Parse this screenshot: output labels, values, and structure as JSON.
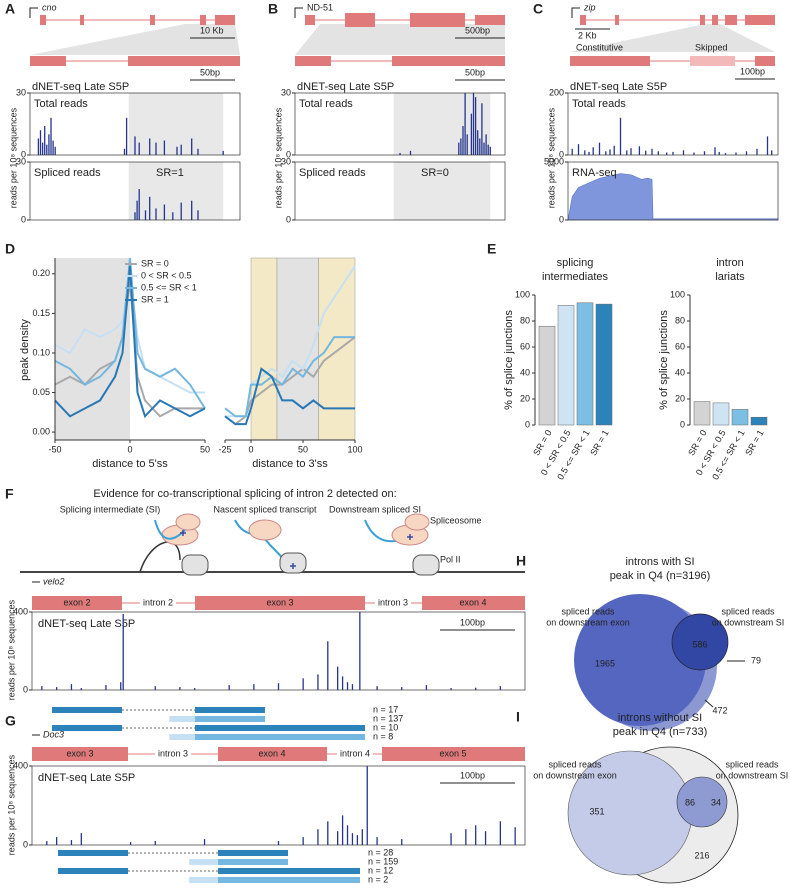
{
  "panels": {
    "A": {
      "label": "A",
      "gene": "cno",
      "scale_gene": "10 Kb",
      "scale_zoom": "50bp",
      "track_title": "dNET-seq Late S5P",
      "y_axis_label": "reads per 10⁸ sequences",
      "tracks": [
        {
          "name": "Total reads",
          "ylim": [
            0,
            30
          ],
          "yticks": [
            0,
            30
          ],
          "x": [
            4,
            5,
            6,
            7,
            8,
            9,
            10,
            11,
            12,
            45,
            46,
            50,
            52,
            57,
            60,
            64,
            70,
            72,
            77,
            80,
            92
          ],
          "values": [
            8,
            12,
            6,
            14,
            5,
            10,
            18,
            7,
            4,
            3,
            18,
            9,
            6,
            8,
            6,
            7,
            4,
            5,
            8,
            3,
            2
          ]
        },
        {
          "name": "Spliced reads",
          "annotation": "SR=1",
          "ylim": [
            0,
            30
          ],
          "yticks": [
            0,
            30
          ],
          "x": [
            50,
            51,
            52,
            55,
            57,
            60,
            64,
            68,
            72,
            77,
            80
          ],
          "values": [
            4,
            10,
            16,
            5,
            12,
            6,
            8,
            4,
            9,
            10,
            5
          ]
        }
      ]
    },
    "B": {
      "label": "B",
      "gene": "ND-51",
      "scale_gene": "500bp",
      "scale_zoom": "50bp",
      "track_title": "dNET-seq Late S5P",
      "y_axis_label": "reads per 10⁸ sequences",
      "tracks": [
        {
          "name": "Total reads",
          "ylim": [
            0,
            30
          ],
          "yticks": [
            0,
            30
          ],
          "x": [
            50,
            55,
            78,
            79,
            80,
            81,
            82,
            84,
            85,
            86,
            87,
            88,
            89,
            90,
            91,
            92,
            93
          ],
          "values": [
            1,
            2,
            6,
            8,
            14,
            30,
            10,
            20,
            30,
            28,
            12,
            8,
            25,
            6,
            10,
            5,
            4
          ]
        },
        {
          "name": "Spliced reads",
          "annotation": "SR=0",
          "ylim": [
            0,
            30
          ],
          "yticks": [
            0,
            30
          ],
          "x": [],
          "values": []
        }
      ]
    },
    "C": {
      "label": "C",
      "gene": "zip",
      "scale_gene": "2 Kb",
      "exon_labels": [
        "Constitutive",
        "Skipped"
      ],
      "scale_zoom": "100bp",
      "track_title": "dNET-seq Late S5P",
      "y_axis_label": "reads per 10⁸ sequences",
      "tracks": [
        {
          "name": "Total reads",
          "ylim": [
            0,
            200
          ],
          "yticks": [
            0,
            200
          ],
          "x": [
            2,
            5,
            8,
            10,
            12,
            15,
            18,
            20,
            22,
            25,
            28,
            30,
            34,
            37,
            40,
            43,
            47,
            50,
            55,
            60,
            65,
            70,
            72,
            75,
            80,
            85,
            90,
            95,
            97
          ],
          "values": [
            20,
            35,
            15,
            10,
            25,
            40,
            12,
            18,
            30,
            120,
            15,
            22,
            28,
            14,
            20,
            12,
            8,
            10,
            15,
            8,
            12,
            25,
            10,
            6,
            8,
            12,
            20,
            60,
            15
          ]
        },
        {
          "name": "RNA-seq",
          "type": "area",
          "ylim": [
            0,
            5000
          ],
          "yticks": [
            0,
            5000
          ],
          "x": [
            0,
            2,
            5,
            10,
            15,
            20,
            25,
            30,
            35,
            38,
            40,
            40.5,
            60,
            80,
            100
          ],
          "values": [
            0,
            2000,
            2800,
            3200,
            3600,
            3800,
            4000,
            3900,
            3500,
            3600,
            3500,
            100,
            100,
            100,
            100
          ]
        }
      ]
    },
    "D": {
      "label": "D",
      "y_label": "peak density",
      "ylim": [
        -0.01,
        0.22
      ],
      "yticks": [
        {
          "value": 0,
          "label": "0.00"
        },
        {
          "value": 0.05,
          "label": "0.05"
        },
        {
          "value": 0.1,
          "label": "0.10"
        },
        {
          "value": 0.15,
          "label": "0.15"
        },
        {
          "value": 0.2,
          "label": "0.20"
        }
      ],
      "series": [
        {
          "name": "SR = 0",
          "color": "#a9a9a9"
        },
        {
          "name": "0 < SR < 0.5",
          "color": "#c6e0f3"
        },
        {
          "name": "0.5 <= SR < 1",
          "color": "#74b7e0"
        },
        {
          "name": "SR = 1",
          "color": "#2878b5"
        }
      ],
      "subplots": [
        {
          "x_label": "distance to 5'ss",
          "xlim": [
            -50,
            50
          ],
          "xticks": [
            -50,
            0,
            50
          ],
          "x": [
            -50,
            -40,
            -30,
            -20,
            -10,
            -5,
            0,
            5,
            10,
            20,
            30,
            40,
            50
          ],
          "values": [
            [
              0.06,
              0.07,
              0.06,
              0.08,
              0.09,
              0.12,
              0.19,
              0.07,
              0.04,
              0.02,
              0.03,
              0.03,
              0.03
            ],
            [
              0.11,
              0.1,
              0.13,
              0.12,
              0.13,
              0.14,
              0.2,
              0.12,
              0.08,
              0.07,
              0.06,
              0.05,
              0.05
            ],
            [
              0.09,
              0.08,
              0.06,
              0.07,
              0.09,
              0.12,
              0.22,
              0.1,
              0.08,
              0.07,
              0.08,
              0.06,
              0.03
            ],
            [
              0.04,
              0.02,
              0.03,
              0.04,
              0.07,
              0.1,
              0.21,
              0.05,
              0.02,
              0.04,
              0.03,
              0.02,
              0.03
            ]
          ]
        },
        {
          "x_label": "distance to 3'ss",
          "xlim": [
            -25,
            100
          ],
          "xticks": [
            -25,
            0,
            50,
            100
          ],
          "x": [
            -25,
            -15,
            -5,
            0,
            10,
            20,
            30,
            40,
            50,
            60,
            70,
            80,
            90,
            100
          ],
          "values": [
            [
              0.02,
              0.01,
              0.02,
              0.04,
              0.05,
              0.06,
              0.06,
              0.07,
              0.08,
              0.07,
              0.09,
              0.1,
              0.11,
              0.12
            ],
            [
              0.02,
              0.02,
              0.02,
              0.06,
              0.07,
              0.08,
              0.07,
              0.09,
              0.08,
              0.11,
              0.15,
              0.17,
              0.19,
              0.21
            ],
            [
              0.03,
              0.02,
              0.02,
              0.06,
              0.06,
              0.07,
              0.06,
              0.08,
              0.07,
              0.09,
              0.1,
              0.12,
              0.12,
              0.12
            ],
            [
              0.02,
              0.01,
              0.01,
              0.03,
              0.08,
              0.07,
              0.04,
              0.04,
              0.03,
              0.04,
              0.03,
              0.03,
              0.03,
              0.03
            ]
          ]
        }
      ]
    },
    "E": {
      "label": "E",
      "y_label": "% of splice junctions",
      "ylim": [
        0,
        100
      ],
      "yticks": [
        0,
        20,
        40,
        60,
        80,
        100
      ],
      "categories": [
        "SR = 0",
        "0 < SR < 0.5",
        "0.5 <= SR < 1",
        "SR = 1"
      ],
      "colors": [
        "#d3d3d3",
        "#cfe4f3",
        "#7cbfe3",
        "#2b83ba"
      ],
      "charts": [
        {
          "title": [
            "splicing",
            "intermediates"
          ],
          "values": [
            76,
            92,
            94,
            93
          ]
        },
        {
          "title": [
            "intron",
            "lariats"
          ],
          "values": [
            18,
            17,
            12,
            6
          ]
        }
      ]
    },
    "F": {
      "label": "F",
      "title": "Evidence for co-transcriptional splicing of intron 2 detected on:",
      "cartoon_labels": [
        "Splicing intermediate (SI)",
        "Nascent spliced transcript",
        "Downstream spliced SI"
      ],
      "spliceosome": "Spliceosome",
      "pol": "Pol II",
      "gene": "velo2",
      "features": [
        "exon 2",
        "intron 2",
        "exon 3",
        "intron 3",
        "exon 4"
      ],
      "track_title": "dNET-seq Late S5P",
      "scale": "100bp",
      "y_axis_label": "reads per 10⁸ sequences",
      "track": {
        "ylim": [
          0,
          400
        ],
        "yticks": [
          0,
          400
        ],
        "x": [
          2,
          5,
          8,
          10,
          15,
          18,
          18.5,
          25,
          30,
          33,
          40,
          45,
          50,
          55,
          58,
          60,
          62,
          63,
          64,
          65,
          66.5,
          70,
          75,
          80,
          85,
          90,
          95
        ],
        "values": [
          20,
          15,
          30,
          10,
          25,
          40,
          390,
          20,
          15,
          10,
          25,
          30,
          35,
          60,
          80,
          250,
          120,
          70,
          40,
          30,
          400,
          20,
          15,
          25,
          10,
          12,
          20
        ]
      },
      "reads": [
        "n = 17",
        "n = 137",
        "n = 10",
        "n = 8"
      ]
    },
    "G": {
      "label": "G",
      "gene": "Doc3",
      "features": [
        "exon 3",
        "intron 3",
        "exon 4",
        "intron 4",
        "exon 5"
      ],
      "track_title": "dNET-seq Late S5P",
      "scale": "100bp",
      "y_axis_label": "reads per 10⁸ sequences",
      "track": {
        "ylim": [
          0,
          400
        ],
        "yticks": [
          0,
          400
        ],
        "x": [
          3,
          5,
          8,
          10,
          20,
          25,
          35,
          50,
          55,
          58,
          60,
          62,
          63,
          64,
          65,
          66,
          67,
          68,
          70,
          75,
          85,
          88,
          90,
          92,
          95,
          98
        ],
        "values": [
          20,
          40,
          25,
          60,
          15,
          20,
          30,
          20,
          40,
          80,
          120,
          70,
          150,
          100,
          60,
          50,
          80,
          400,
          40,
          30,
          60,
          80,
          100,
          70,
          120,
          90
        ]
      },
      "reads": [
        "n = 28",
        "n = 159",
        "n = 12",
        "n = 2"
      ]
    },
    "H": {
      "label": "H",
      "title": [
        "introns with SI",
        "peak in Q4 (n=3196)"
      ],
      "left_label": [
        "spliced reads",
        "on downstream exon"
      ],
      "right_label": [
        "spliced reads",
        "on downstream SI"
      ],
      "counts": [
        1965,
        586,
        79,
        472
      ]
    },
    "I": {
      "label": "I",
      "title": [
        "introns without SI",
        "peak in Q4 (n=733)"
      ],
      "left_label": [
        "spliced reads",
        "on downstream exon"
      ],
      "right_label": [
        "spliced reads",
        "on downstream SI"
      ],
      "counts": [
        351,
        86,
        34,
        216
      ]
    }
  }
}
